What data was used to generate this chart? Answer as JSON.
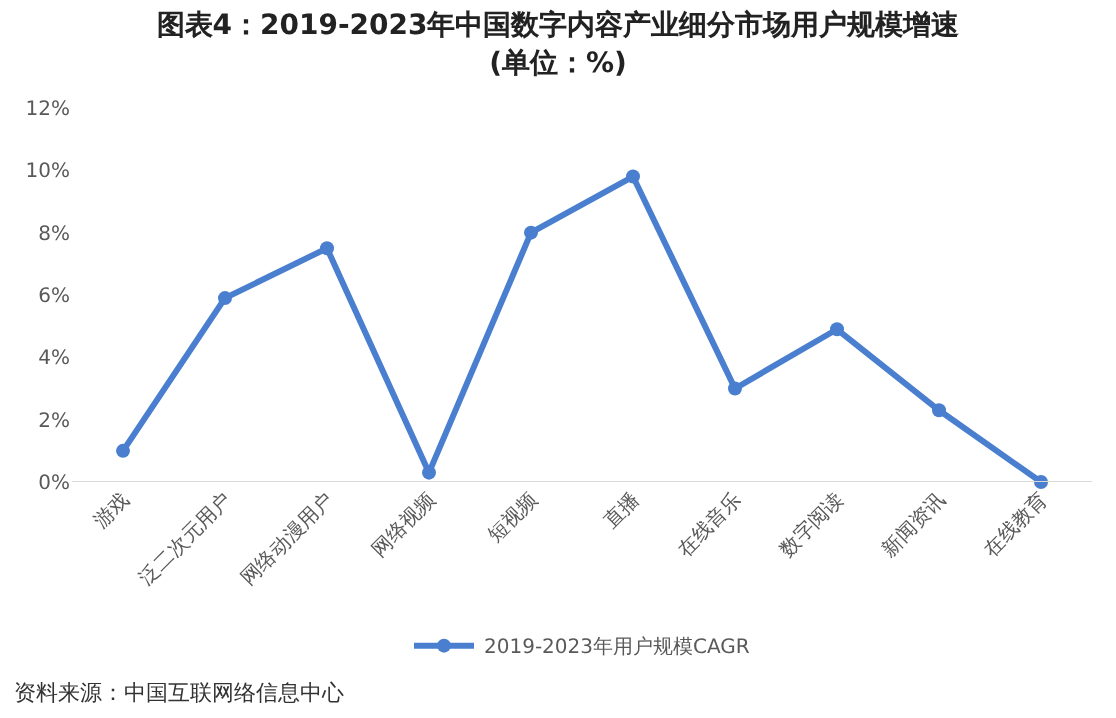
{
  "chart_data": {
    "type": "line",
    "title": "图表4：2019-2023年中国数字内容产业细分市场用户规模增速(单位：%)",
    "categories": [
      "游戏",
      "泛二次元用户",
      "网络动漫用户",
      "网络视频",
      "短视频",
      "直播",
      "在线音乐",
      "数字阅读",
      "新闻资讯",
      "在线教育"
    ],
    "series": [
      {
        "name": "2019-2023年用户规模CAGR",
        "color": "#4a7fcf",
        "values": [
          1.0,
          5.9,
          7.5,
          0.3,
          8.0,
          9.8,
          3.0,
          4.9,
          2.3,
          0.0
        ]
      }
    ],
    "ylim": [
      0,
      12
    ],
    "yticks": [
      {
        "value": 0,
        "label": "0%"
      },
      {
        "value": 2,
        "label": "2%"
      },
      {
        "value": 4,
        "label": "4%"
      },
      {
        "value": 6,
        "label": "6%"
      },
      {
        "value": 8,
        "label": "8%"
      },
      {
        "value": 10,
        "label": "10%"
      },
      {
        "value": 12,
        "label": "12%"
      }
    ],
    "grid": false,
    "legend": "bottom",
    "marker": "circle",
    "line_style": "solid",
    "annotations": [
      "资料来源：中国互联网络信息中心"
    ]
  }
}
